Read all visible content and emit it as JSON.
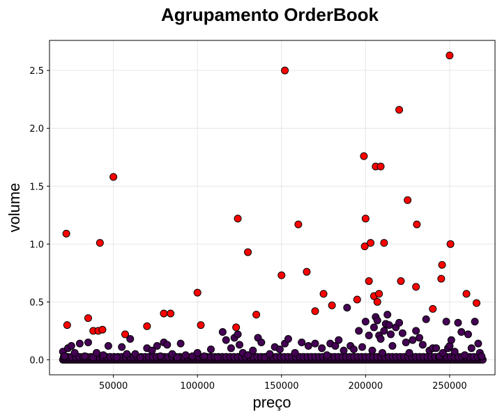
{
  "chart_data": {
    "type": "scatter",
    "title": "Agrupamento OrderBook",
    "xlabel": "preço",
    "ylabel": "volume",
    "xlim": [
      12000,
      277000
    ],
    "ylim": [
      -0.13,
      2.76
    ],
    "grid": true,
    "xticks": [
      50000,
      100000,
      150000,
      200000,
      250000
    ],
    "yticks": [
      0.0,
      0.5,
      1.0,
      1.5,
      2.0,
      2.5
    ],
    "ytick_labels": [
      "0.0",
      "0.5",
      "1.0",
      "1.5",
      "2.0",
      "2.5"
    ],
    "colors": {
      "cluster_low": "#440154",
      "cluster_high": "#ff0000",
      "edge": "#000000"
    },
    "series": [
      {
        "color": "#ff0000",
        "x": [
          22000,
          22500,
          35000,
          38000,
          41000,
          42000,
          43500,
          50000,
          57000,
          70000,
          80000,
          84000,
          100000,
          102000,
          123000,
          124000,
          130000,
          135000,
          150000,
          152000,
          160000,
          165000,
          170000,
          175000,
          180000,
          195000,
          199000,
          199500,
          200000,
          202000,
          203000,
          205000,
          206000,
          207000,
          208000,
          209000,
          211000,
          220000,
          221000,
          225000,
          230000,
          230500,
          240000,
          245000,
          245500,
          250000,
          250500,
          260000,
          266000
        ],
        "y": [
          1.09,
          0.3,
          0.36,
          0.25,
          0.25,
          1.01,
          0.26,
          1.58,
          0.22,
          0.29,
          0.4,
          0.4,
          0.58,
          0.3,
          0.28,
          1.22,
          0.93,
          0.39,
          0.73,
          2.5,
          1.17,
          0.76,
          0.42,
          0.57,
          0.47,
          0.52,
          1.76,
          0.98,
          1.22,
          0.68,
          1.01,
          0.55,
          1.67,
          0.5,
          0.57,
          1.67,
          1.01,
          2.16,
          0.68,
          1.38,
          0.63,
          1.17,
          0.44,
          0.7,
          0.82,
          2.63,
          1.0,
          0.57,
          0.49
        ]
      },
      {
        "color": "#440154",
        "x": [
          20000,
          21000,
          23000,
          25000,
          27000,
          30000,
          33000,
          35000,
          38000,
          40000,
          44000,
          47000,
          52000,
          55000,
          58000,
          60000,
          63000,
          66000,
          70000,
          73000,
          76000,
          78000,
          80000,
          82000,
          85000,
          88000,
          90000,
          93000,
          97000,
          100000,
          104000,
          108000,
          112000,
          115000,
          117000,
          120000,
          122000,
          124000,
          125000,
          127000,
          130000,
          133000,
          136000,
          138000,
          140000,
          143000,
          146000,
          149000,
          152000,
          154000,
          158000,
          162000,
          166000,
          170000,
          174000,
          177000,
          179000,
          182000,
          184000,
          187000,
          189000,
          191000,
          193000,
          196000,
          198000,
          200000,
          202000,
          204000,
          205000,
          206000,
          207000,
          208000,
          209000,
          210000,
          211000,
          212000,
          213000,
          214000,
          215000,
          216000,
          218000,
          220000,
          222000,
          224000,
          226000,
          228000,
          230000,
          232000,
          234000,
          236000,
          238000,
          240000,
          242000,
          244000,
          246000,
          248000,
          249000,
          250000,
          251000,
          253000,
          255000,
          257000,
          259000,
          261000,
          263000,
          265000,
          267000,
          268000,
          269000
        ],
        "y": [
          0.07,
          0.03,
          0.1,
          0.12,
          0.06,
          0.14,
          0.03,
          0.15,
          0.02,
          0.06,
          0.04,
          0.12,
          0.02,
          0.11,
          0.05,
          0.18,
          0.05,
          0.02,
          0.1,
          0.08,
          0.12,
          0.03,
          0.15,
          0.13,
          0.05,
          0.02,
          0.14,
          0.04,
          0.03,
          0.06,
          0.03,
          0.09,
          0.02,
          0.24,
          0.17,
          0.1,
          0.19,
          0.22,
          0.13,
          0.06,
          0.04,
          0.08,
          0.19,
          0.15,
          0.02,
          0.05,
          0.11,
          0.09,
          0.14,
          0.18,
          0.06,
          0.15,
          0.12,
          0.14,
          0.1,
          0.04,
          0.14,
          0.12,
          0.17,
          0.08,
          0.45,
          0.12,
          0.09,
          0.25,
          0.11,
          0.33,
          0.21,
          0.08,
          0.28,
          0.37,
          0.34,
          0.21,
          0.18,
          0.06,
          0.25,
          0.31,
          0.39,
          0.3,
          0.22,
          0.12,
          0.28,
          0.32,
          0.23,
          0.15,
          0.06,
          0.17,
          0.25,
          0.19,
          0.13,
          0.35,
          0.08,
          0.1,
          0.1,
          0.03,
          0.06,
          0.33,
          0.1,
          0.12,
          0.17,
          0.07,
          0.32,
          0.24,
          0.04,
          0.22,
          0.1,
          0.33,
          0.14,
          0.06,
          0.03
        ]
      }
    ]
  }
}
